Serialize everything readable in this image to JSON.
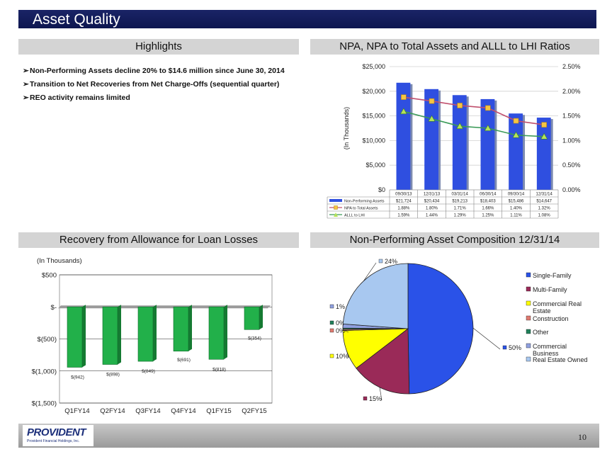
{
  "page_title": "Asset Quality",
  "sections": {
    "highlights": "Highlights",
    "npa": "NPA, NPA to Total Assets and ALLL to LHI Ratios",
    "recovery": "Recovery from Allowance for Loan Losses",
    "composition": "Non-Performing Asset Composition 12/31/14"
  },
  "highlights": [
    "Non-Performing Assets decline 20% to $14.6 million since June 30, 2014",
    "Transition to Net Recoveries from Net Charge-Offs (sequential quarter)",
    "REO activity remains limited"
  ],
  "footer": {
    "logo_text": "PROVIDENT",
    "logo_subtext": "Provident Financial Holdings, Inc.",
    "page_number": "10"
  },
  "colors": {
    "bar_blue": "#2f4fe0",
    "npa_line": "#c0506e",
    "npa_marker": "#f5c542",
    "alll_line": "#3a9a58",
    "alll_marker": "#b5e35a",
    "recovery_bar": "#22b04a"
  },
  "chart_data": [
    {
      "type": "bar",
      "combo": "bar-line",
      "ylabel": "(In Thousands)",
      "categories": [
        "09/30/13",
        "12/31/13",
        "03/31/14",
        "06/30/14",
        "09/30/14",
        "12/31/14"
      ],
      "y_ticks": [
        "$0",
        "$5,000",
        "$10,000",
        "$15,000",
        "$20,000",
        "$25,000"
      ],
      "y2_ticks": [
        "0.00%",
        "0.50%",
        "1.00%",
        "1.50%",
        "2.00%",
        "2.50%"
      ],
      "ylim": [
        0,
        25000
      ],
      "y2lim": [
        0,
        2.5
      ],
      "series": [
        {
          "name": "Non-Performing Assets",
          "kind": "bar",
          "values": [
            21724,
            20434,
            19213,
            18403,
            15486,
            14647
          ],
          "labels": [
            "$21,724",
            "$20,434",
            "$19,213",
            "$18,403",
            "$15,486",
            "$14,647"
          ]
        },
        {
          "name": "NPA to Total Assets",
          "kind": "line",
          "values": [
            1.88,
            1.8,
            1.71,
            1.66,
            1.4,
            1.32
          ],
          "labels": [
            "1.88%",
            "1.80%",
            "1.71%",
            "1.66%",
            "1.40%",
            "1.32%"
          ]
        },
        {
          "name": "ALLL to LHI",
          "kind": "line",
          "values": [
            1.59,
            1.44,
            1.29,
            1.25,
            1.11,
            1.08
          ],
          "labels": [
            "1.59%",
            "1.44%",
            "1.29%",
            "1.25%",
            "1.11%",
            "1.08%"
          ]
        }
      ],
      "grid": true,
      "legend": "data-table below chart"
    },
    {
      "type": "bar",
      "ylabel": "(In Thousands)",
      "categories": [
        "Q1FY14",
        "Q2FY14",
        "Q3FY14",
        "Q4FY14",
        "Q1FY15",
        "Q2FY15"
      ],
      "values": [
        -942,
        -898,
        -849,
        -691,
        -818,
        -354
      ],
      "labels": [
        "$(942)",
        "$(898)",
        "$(849)",
        "$(691)",
        "$(818)",
        "$(354)"
      ],
      "y_ticks": [
        "$(1,500)",
        "$(1,000)",
        "$(500)",
        "$-",
        "$500"
      ],
      "ylim": [
        -1500,
        500
      ],
      "grid": true
    },
    {
      "type": "pie",
      "categories": [
        "Single-Family",
        "Multi-Family",
        "Commercial Real Estate",
        "Construction",
        "Other",
        "Commercial Business",
        "Real Estate Owned"
      ],
      "values": [
        50,
        15,
        10,
        0.3,
        0.3,
        1,
        24
      ],
      "labels": [
        "50%",
        "15%",
        "10%",
        "0%",
        "0%",
        "1%",
        "24%"
      ],
      "colors": [
        "#2a52e8",
        "#9a2a58",
        "#ffff00",
        "#e07a70",
        "#20805a",
        "#8fa0e0",
        "#a8c8f0"
      ],
      "legend": "right"
    }
  ]
}
